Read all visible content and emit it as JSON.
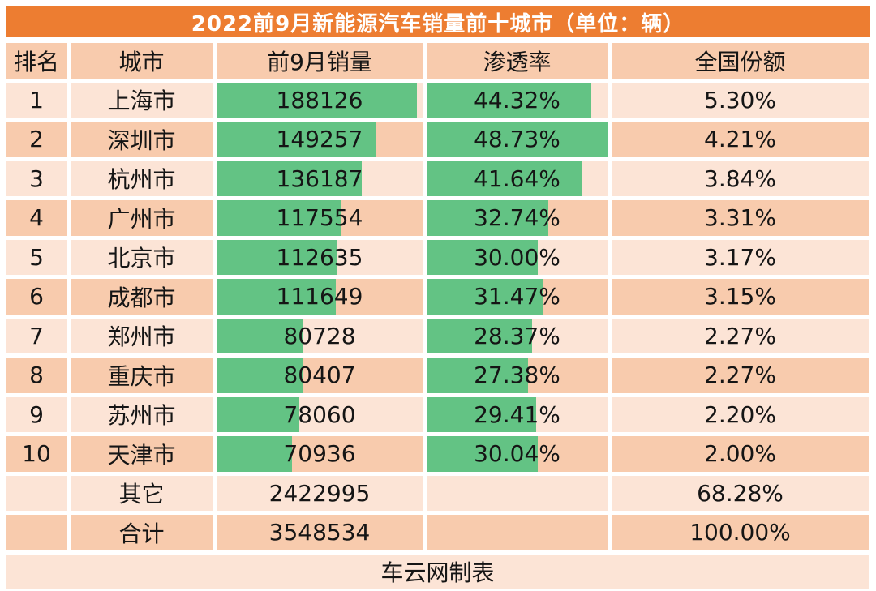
{
  "page": {
    "title": "2022前9月新能源汽车销量前十城市（单位：辆）",
    "footer": "车云网制表"
  },
  "colors": {
    "title_bar": "#ED7D31",
    "row_light": "#FCE4D6",
    "row_dark": "#F8CBAD",
    "bar_green": "#63C384",
    "title_text": "#FFFFFF",
    "text": "#151515"
  },
  "chart_data": {
    "type": "table",
    "title": "2022前9月新能源汽车销量前十城市（单位：辆）",
    "columns": [
      "排名",
      "城市",
      "前9月销量",
      "渗透率",
      "全国份额"
    ],
    "rows": [
      {
        "rank": "1",
        "city": "上海市",
        "sales": "188126",
        "sales_value": 188126,
        "penetration": "44.32%",
        "penetration_value": 44.32,
        "share": "5.30%"
      },
      {
        "rank": "2",
        "city": "深圳市",
        "sales": "149257",
        "sales_value": 149257,
        "penetration": "48.73%",
        "penetration_value": 48.73,
        "share": "4.21%"
      },
      {
        "rank": "3",
        "city": "杭州市",
        "sales": "136187",
        "sales_value": 136187,
        "penetration": "41.64%",
        "penetration_value": 41.64,
        "share": "3.84%"
      },
      {
        "rank": "4",
        "city": "广州市",
        "sales": "117554",
        "sales_value": 117554,
        "penetration": "32.74%",
        "penetration_value": 32.74,
        "share": "3.31%"
      },
      {
        "rank": "5",
        "city": "北京市",
        "sales": "112635",
        "sales_value": 112635,
        "penetration": "30.00%",
        "penetration_value": 30.0,
        "share": "3.17%"
      },
      {
        "rank": "6",
        "city": "成都市",
        "sales": "111649",
        "sales_value": 111649,
        "penetration": "31.47%",
        "penetration_value": 31.47,
        "share": "3.15%"
      },
      {
        "rank": "7",
        "city": "郑州市",
        "sales": "80728",
        "sales_value": 80728,
        "penetration": "28.37%",
        "penetration_value": 28.37,
        "share": "2.27%"
      },
      {
        "rank": "8",
        "city": "重庆市",
        "sales": "80407",
        "sales_value": 80407,
        "penetration": "27.38%",
        "penetration_value": 27.38,
        "share": "2.27%"
      },
      {
        "rank": "9",
        "city": "苏州市",
        "sales": "78060",
        "sales_value": 78060,
        "penetration": "29.41%",
        "penetration_value": 29.41,
        "share": "2.20%"
      },
      {
        "rank": "10",
        "city": "天津市",
        "sales": "70936",
        "sales_value": 70936,
        "penetration": "30.04%",
        "penetration_value": 30.04,
        "share": "2.00%"
      }
    ],
    "summary_rows": [
      {
        "rank": "",
        "city": "其它",
        "sales": "2422995",
        "penetration": "",
        "share": "68.28%"
      },
      {
        "rank": "",
        "city": "合计",
        "sales": "3548534",
        "penetration": "",
        "share": "100.00%"
      }
    ],
    "bar_scales": {
      "sales_max": 188126,
      "sales_max_fill_pct": 97.2,
      "penetration_max": 48.73
    },
    "layout": {
      "grid": "off",
      "bars": "in-cell data bars for 前9月销量 and 渗透率 columns"
    }
  }
}
